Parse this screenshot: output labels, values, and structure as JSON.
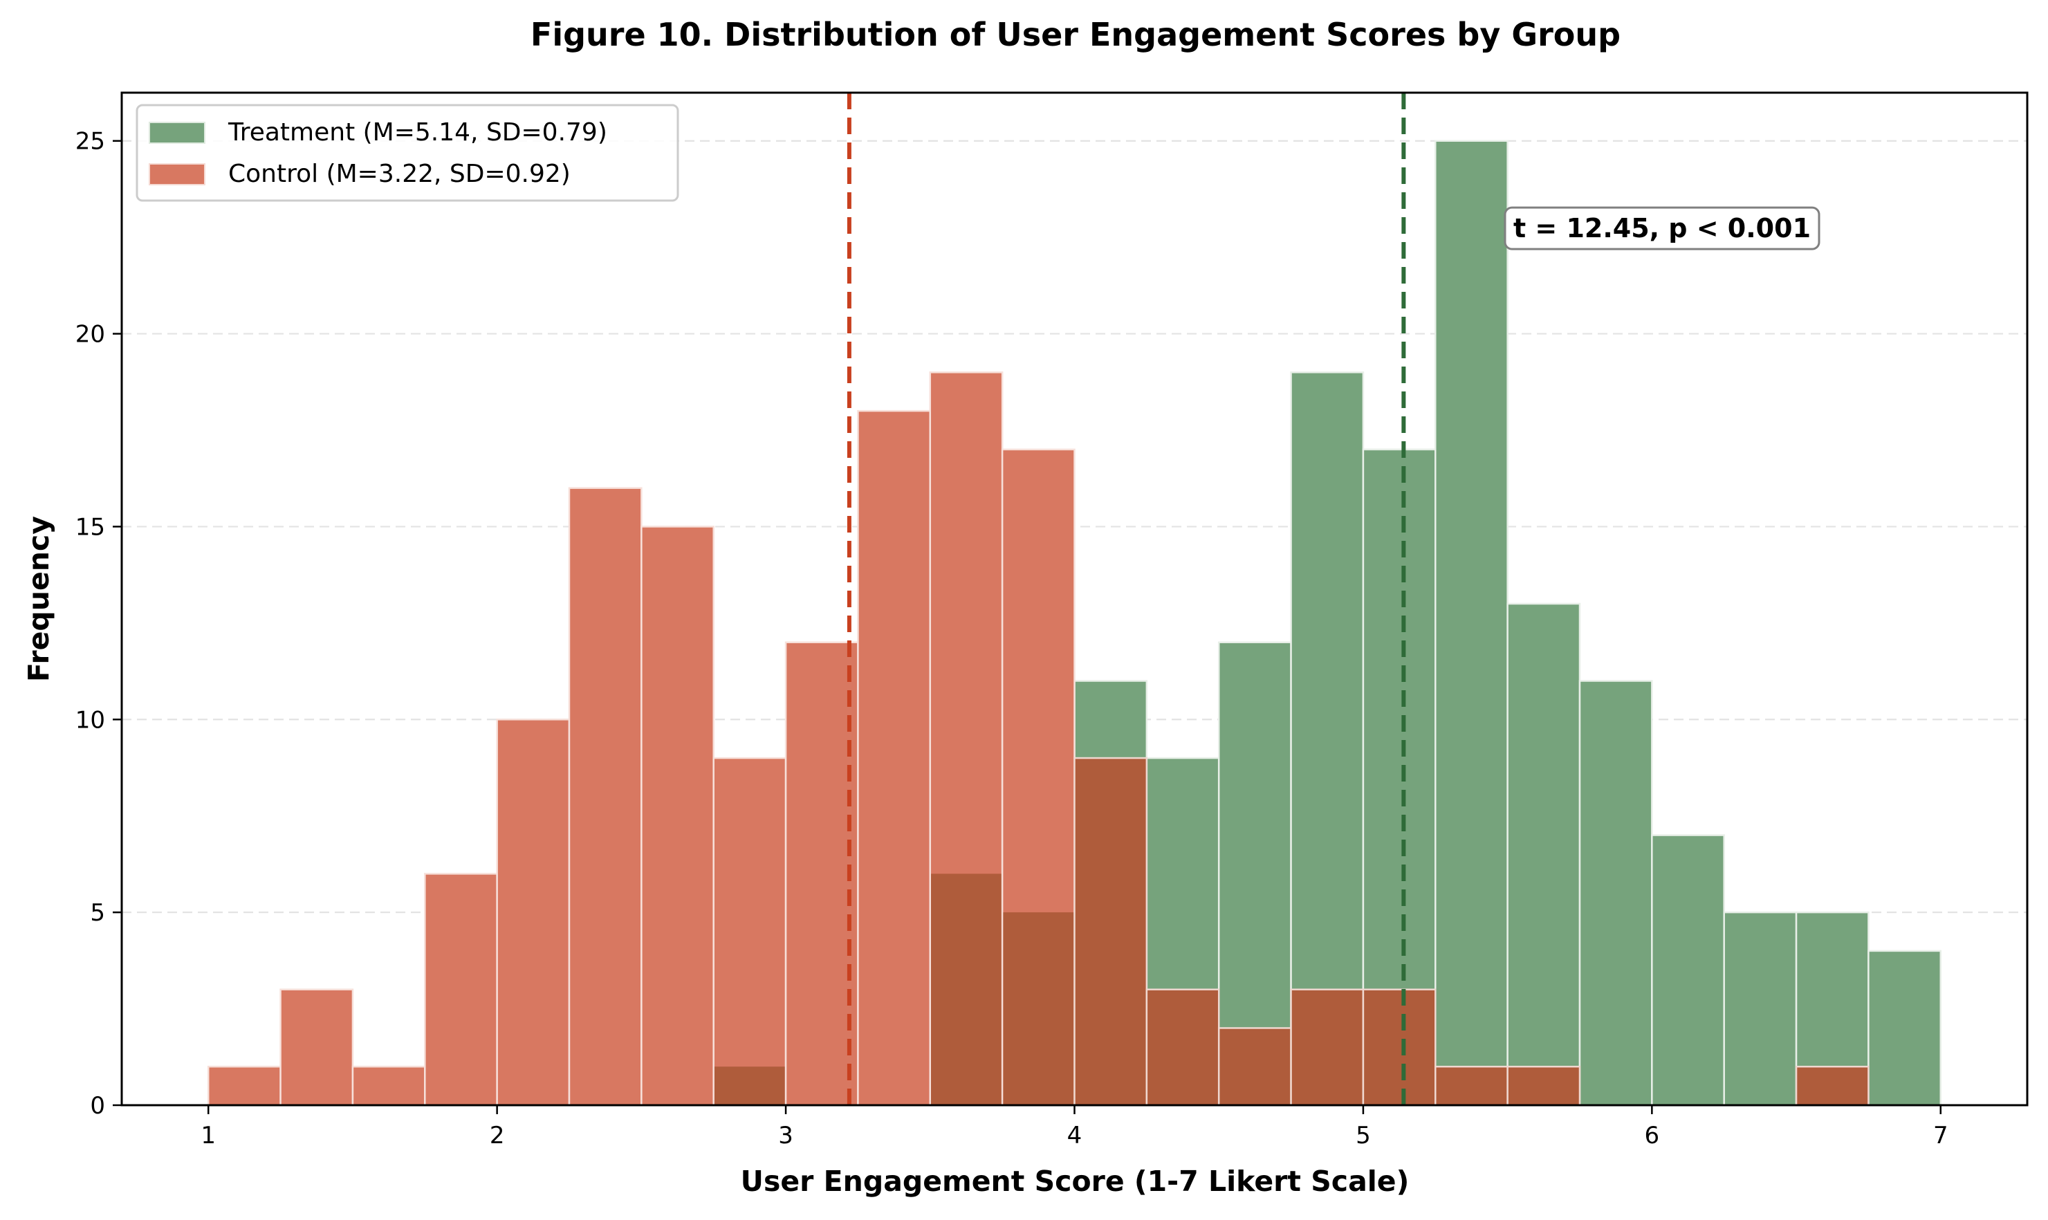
{
  "chart_data": {
    "type": "bar",
    "subtype": "overlapping-histogram",
    "title": "Figure 10. Distribution of User Engagement Scores by Group",
    "xlabel": "User Engagement Score (1-7 Likert Scale)",
    "ylabel": "Frequency",
    "xlim": [
      0.7,
      7.3
    ],
    "ylim": [
      0,
      26.25
    ],
    "xticks": [
      1,
      2,
      3,
      4,
      5,
      6,
      7
    ],
    "yticks": [
      0,
      5,
      10,
      15,
      20,
      25
    ],
    "grid": "y-dashed",
    "legend_position": "top-left",
    "bin_edges": [
      1.0,
      1.25,
      1.5,
      1.75,
      2.0,
      2.25,
      2.5,
      2.75,
      3.0,
      3.25,
      3.5,
      3.75,
      4.0,
      4.25,
      4.5,
      4.75,
      5.0,
      5.25,
      5.5,
      5.75,
      6.0,
      6.25,
      6.5,
      6.75,
      7.0
    ],
    "series": [
      {
        "name": "Treatment (M=5.14, SD=0.79)",
        "key": "treatment",
        "color": "#76A37C",
        "mean": 5.14,
        "mean_line_color": "#2E6B38",
        "values": [
          0,
          0,
          0,
          0,
          0,
          0,
          0,
          1,
          0,
          0,
          6,
          5,
          11,
          9,
          12,
          19,
          17,
          25,
          13,
          11,
          7,
          5,
          5,
          4
        ]
      },
      {
        "name": "Control (M=3.22, SD=0.92)",
        "key": "control",
        "color": "#D87861",
        "mean": 3.22,
        "mean_line_color": "#C8401F",
        "values": [
          1,
          3,
          1,
          6,
          10,
          16,
          15,
          9,
          12,
          18,
          19,
          17,
          9,
          3,
          2,
          3,
          3,
          1,
          1,
          0,
          0,
          0,
          1,
          0
        ]
      }
    ],
    "overlap_color": "#AF5C3B",
    "annotation": {
      "text": "t = 12.45, p < 0.001",
      "x": 5.52,
      "y": 22.5
    }
  }
}
